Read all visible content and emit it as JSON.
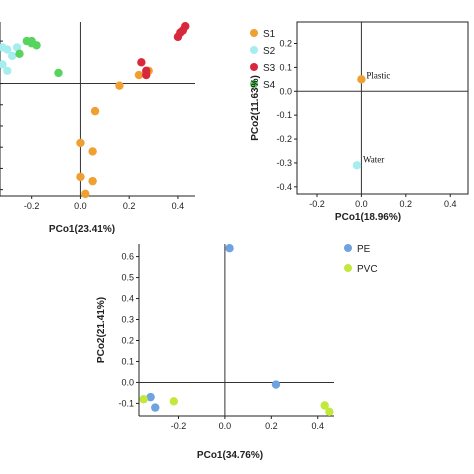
{
  "chart_data": [
    {
      "type": "scatter",
      "xlabel": "PCo1(23.41%)",
      "ylabel": "",
      "xlim": [
        -0.33,
        0.47
      ],
      "ylim": [
        -0.53,
        0.29
      ],
      "x_ticks": [
        -0.2,
        0.0,
        0.2,
        0.4
      ],
      "x_tick_labels": [
        "-0.2",
        "0.0",
        "0.2",
        "0.4"
      ],
      "y_ticks": [
        0.2,
        0.1,
        0.0,
        -0.1,
        -0.2,
        -0.3,
        -0.4,
        -0.5
      ],
      "grid": false,
      "legend_position": "right",
      "series": [
        {
          "name": "S1",
          "color": "#F0A030",
          "x": [
            0.28,
            0.24,
            0.16,
            0.06,
            0.0,
            0.05,
            0.0,
            0.05,
            0.02
          ],
          "y": [
            0.06,
            0.04,
            -0.01,
            -0.13,
            -0.28,
            -0.32,
            -0.44,
            -0.46,
            -0.52
          ]
        },
        {
          "name": "S2",
          "color": "#A6EDF0",
          "x": [
            -0.32,
            -0.3,
            -0.26,
            -0.28,
            -0.32,
            -0.3
          ],
          "y": [
            0.17,
            0.16,
            0.17,
            0.13,
            0.09,
            0.06
          ]
        },
        {
          "name": "S3",
          "color": "#D8283C",
          "x": [
            0.43,
            0.42,
            0.41,
            0.4,
            0.25,
            0.27,
            0.27
          ],
          "y": [
            0.27,
            0.25,
            0.24,
            0.22,
            0.1,
            0.06,
            0.04
          ]
        },
        {
          "name": "S4",
          "color": "#56D45E",
          "x": [
            -0.22,
            -0.2,
            -0.2,
            -0.18,
            -0.25,
            -0.09
          ],
          "y": [
            0.2,
            0.2,
            0.19,
            0.18,
            0.14,
            0.05
          ]
        }
      ]
    },
    {
      "type": "scatter",
      "xlabel": "PCo1(18.96%)",
      "ylabel": "PCo2(11.63%)",
      "xlim": [
        -0.29,
        0.48
      ],
      "ylim": [
        -0.43,
        0.29
      ],
      "x_ticks": [
        -0.2,
        0.0,
        0.2,
        0.4
      ],
      "x_tick_labels": [
        "-0.2",
        "0.0",
        "0.2",
        "0.4"
      ],
      "y_ticks": [
        0.2,
        0.1,
        0.0,
        -0.1,
        -0.2,
        -0.3,
        -0.4
      ],
      "y_tick_labels": [
        "0.2",
        "0.1",
        "0.0",
        "-0.1",
        "-0.2",
        "-0.3",
        "-0.4"
      ],
      "grid": false,
      "series": [
        {
          "name": "Plastic",
          "color": "#F0A030",
          "x": [
            0.0
          ],
          "y": [
            0.05
          ]
        },
        {
          "name": "Water",
          "color": "#A6EDF0",
          "x": [
            -0.02
          ],
          "y": [
            -0.31
          ]
        }
      ]
    },
    {
      "type": "scatter",
      "xlabel": "PCo1(34.76%)",
      "ylabel": "PCo2(21.41%)",
      "xlim": [
        -0.37,
        0.47
      ],
      "ylim": [
        -0.16,
        0.66
      ],
      "x_ticks": [
        -0.2,
        0.0,
        0.2,
        0.4
      ],
      "x_tick_labels": [
        "-0.2",
        "0.0",
        "0.2",
        "0.4"
      ],
      "y_ticks": [
        0.6,
        0.5,
        0.4,
        0.3,
        0.2,
        0.1,
        0.0,
        -0.1
      ],
      "y_tick_labels": [
        "0.6",
        "0.5",
        "0.4",
        "0.3",
        "0.2",
        "0.1",
        "0.0",
        "-0.1"
      ],
      "grid": false,
      "legend_position": "right",
      "series": [
        {
          "name": "PE",
          "color": "#6EA2E0",
          "x": [
            0.02,
            0.22,
            -0.32,
            -0.3
          ],
          "y": [
            0.64,
            -0.01,
            -0.07,
            -0.12
          ]
        },
        {
          "name": "PVC",
          "color": "#C2E83A",
          "x": [
            -0.35,
            -0.22,
            0.43,
            0.45
          ],
          "y": [
            -0.08,
            -0.09,
            -0.11,
            -0.14
          ]
        }
      ]
    }
  ]
}
